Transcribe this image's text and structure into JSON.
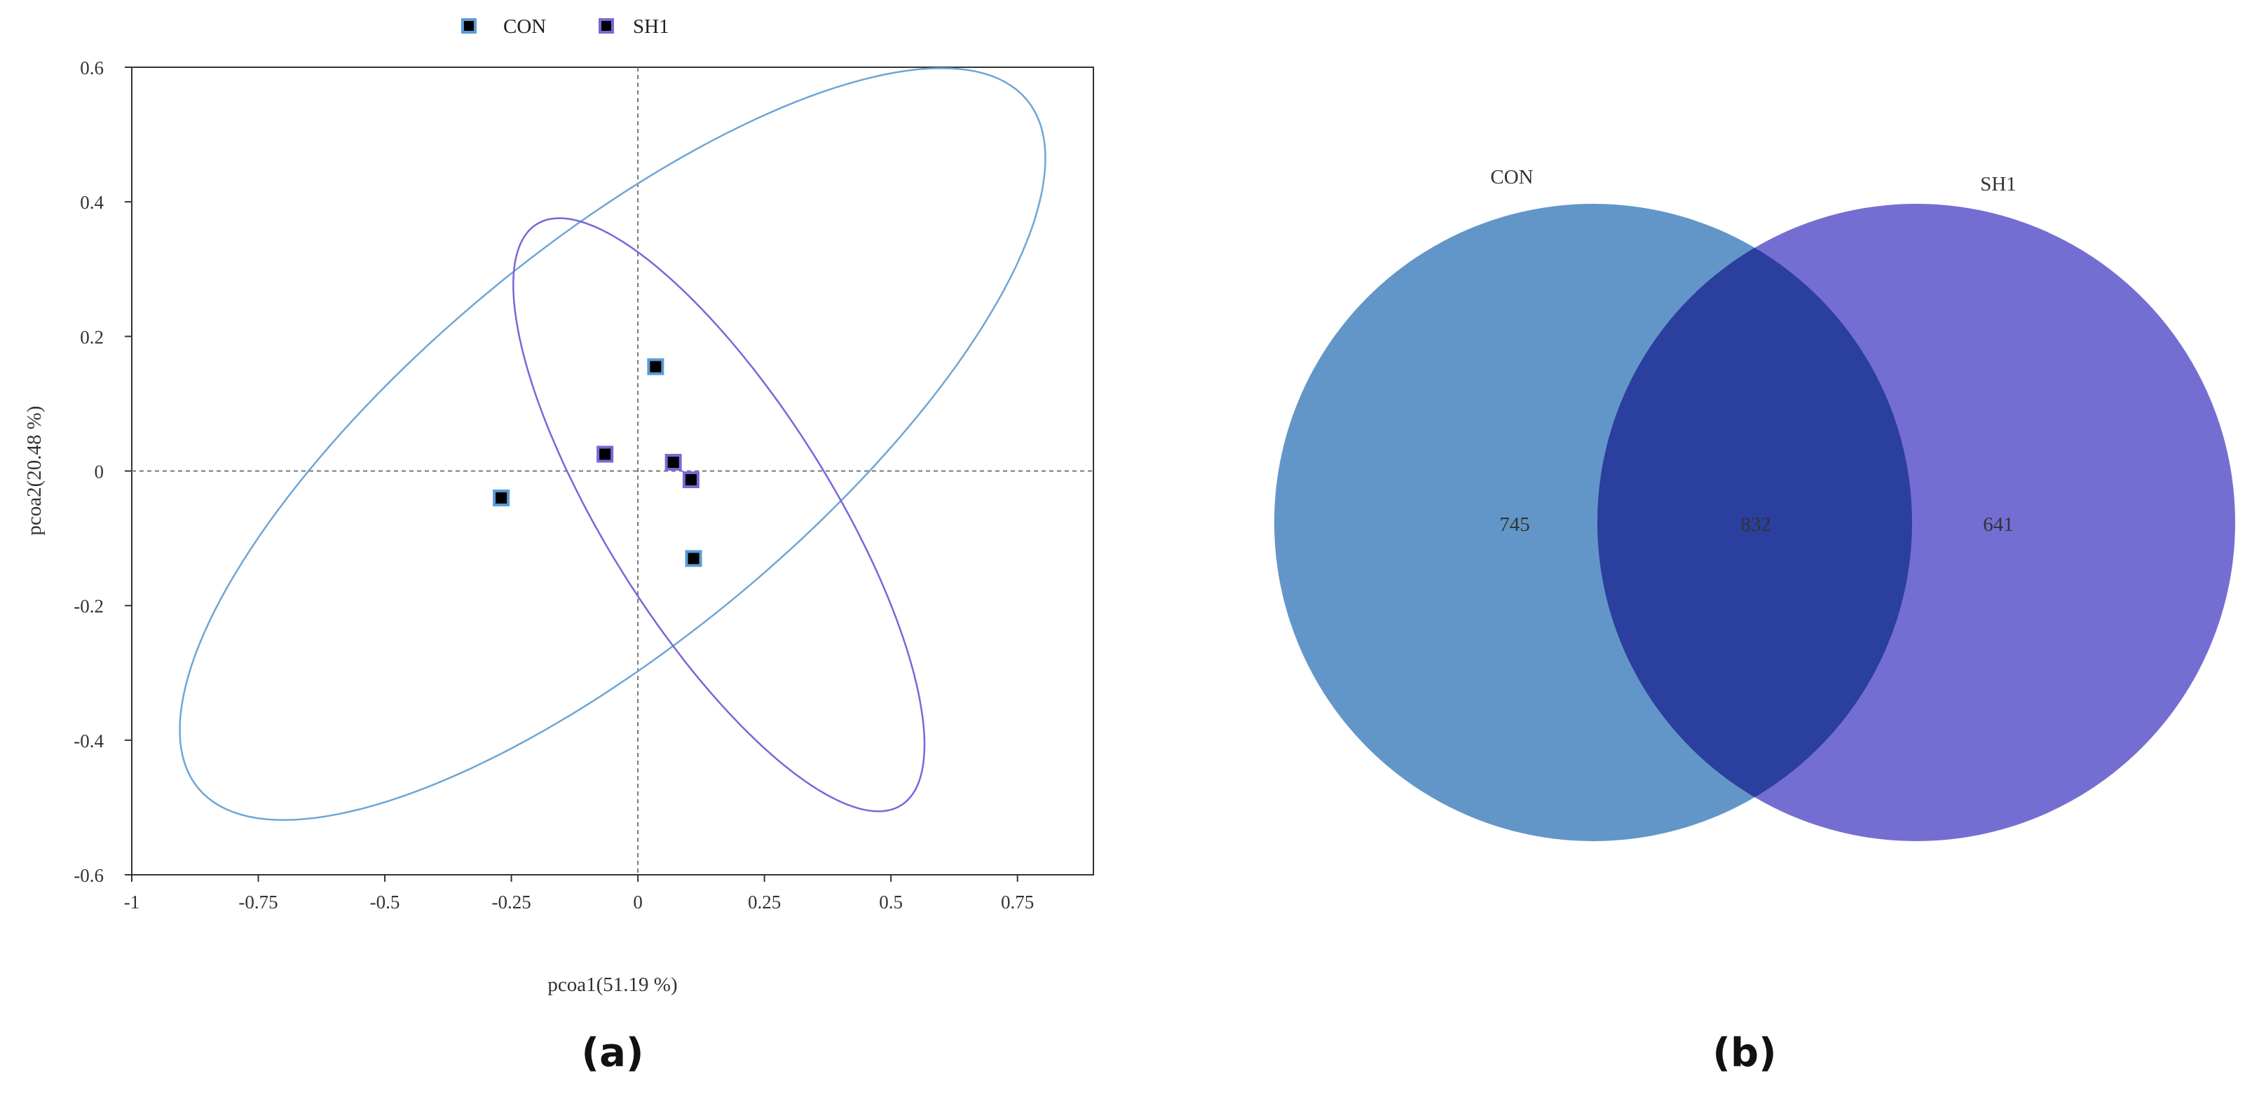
{
  "chart_data": [
    {
      "type": "scatter",
      "panel_label": "(a)",
      "xlabel": "pcoa1(51.19 %)",
      "ylabel": "pcoa2(20.48 %)",
      "xlim": [
        -1,
        0.9
      ],
      "ylim": [
        -0.6,
        0.6
      ],
      "xticks": [
        "-1",
        "-0.75",
        "-0.5",
        "-0.25",
        "0",
        "0.25",
        "0.5",
        "0.75"
      ],
      "yticks": [
        "0.6",
        "0.4",
        "0.2",
        "0",
        "-0.2",
        "-0.4",
        "-0.6"
      ],
      "legend_position": "top-center",
      "reference_lines": {
        "x": 0,
        "y": 0
      },
      "series": [
        {
          "name": "CON",
          "marker_color": "#000000",
          "marker_edge": "#5b9bd5",
          "ellipse_color": "#6ea6d6",
          "points": [
            {
              "x": -0.27,
              "y": -0.04
            },
            {
              "x": 0.035,
              "y": 0.155
            },
            {
              "x": 0.11,
              "y": -0.13
            }
          ],
          "ellipse": {
            "center": [
              -0.05,
              0.04
            ],
            "semi_major": 0.97,
            "semi_minor": 0.32,
            "angle_deg": 30
          }
        },
        {
          "name": "SH1",
          "marker_color": "#000000",
          "marker_edge": "#7b68d6",
          "ellipse_color": "#7a66da",
          "points": [
            {
              "x": -0.065,
              "y": 0.025
            },
            {
              "x": 0.07,
              "y": 0.013
            },
            {
              "x": 0.105,
              "y": -0.013
            }
          ],
          "ellipse": {
            "center": [
              0.16,
              -0.065
            ],
            "semi_major": 0.565,
            "semi_minor": 0.2,
            "angle_deg": -48
          }
        }
      ]
    },
    {
      "type": "venn",
      "panel_label": "(b)",
      "sets": [
        {
          "name": "CON",
          "only": 745,
          "color": "#6296c8"
        },
        {
          "name": "SH1",
          "only": 641,
          "color": "#746ed2"
        }
      ],
      "intersection": {
        "value": 832,
        "color": "#2b3f9e"
      }
    }
  ]
}
